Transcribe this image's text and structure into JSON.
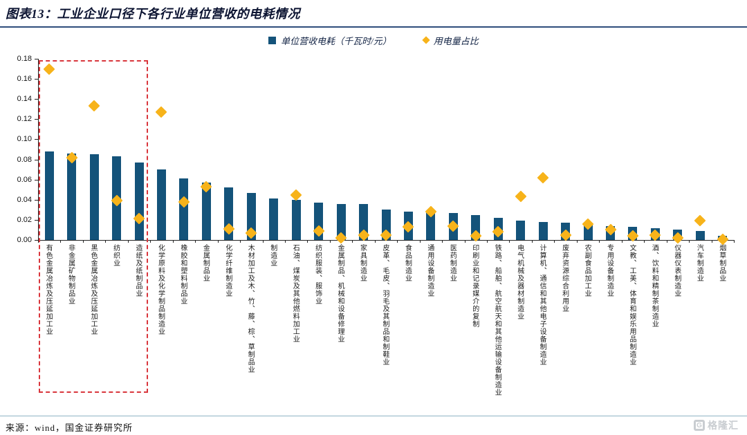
{
  "header": {
    "title": "图表13：工业企业口径下各行业单位营收的电耗情况"
  },
  "legend": {
    "bars_label": "单位营收电耗（千瓦时/元）",
    "diamond_label": "用电量占比"
  },
  "footer": {
    "source": "来源：wind，国金证券研究所",
    "logo_letter": "G",
    "logo_text": "格隆汇"
  },
  "colors": {
    "bar": "#14537a",
    "diamond": "#f7b31a",
    "highlight_box": "#d9363c",
    "accent_rule": "#2e4d7b"
  },
  "chart_data": {
    "type": "bar",
    "title": "图表13：工业企业口径下各行业单位营收的电耗情况",
    "ylim": [
      0,
      0.18
    ],
    "ytick_step": 0.02,
    "grid": false,
    "legend_position": "top-center",
    "categories": [
      "有色金属冶炼及压延加工业",
      "非金属矿物制品业",
      "黑色金属冶炼及压延加工业",
      "纺织业",
      "造纸及纸制品业",
      "化学原料及化学制品制造业",
      "橡胶和塑料制品业",
      "金属制品业",
      "化学纤维制造业",
      "木材加工及木、竹、藤、棕、草制品业",
      "制造业",
      "石油、煤炭及其他燃料加工业",
      "纺织服装、服饰业",
      "金属制品、机械和设备修理业",
      "家具制造业",
      "皮革、毛皮、羽毛及其制品和制鞋业",
      "食品制造业",
      "通用设备制造业",
      "医药制造业",
      "印刷业和记录媒介的复制",
      "铁路、船舶、航空航天和其他运输设备制造业",
      "电气机械及器材制造业",
      "计算机、通信和其他电子设备制造业",
      "废弃资源综合利用业",
      "农副食品加工业",
      "专用设备制造业",
      "文教、工美、体育和娱乐用品制造业",
      "酒、饮料和精制茶制造业",
      "仪器仪表制造业",
      "汽车制造业",
      "烟草制品业"
    ],
    "series": [
      {
        "name": "单位营收电耗（千瓦时/元）",
        "type": "bar",
        "values": [
          0.088,
          0.086,
          0.085,
          0.083,
          0.077,
          0.07,
          0.061,
          0.057,
          0.052,
          0.047,
          0.041,
          0.04,
          0.037,
          0.036,
          0.036,
          0.03,
          0.028,
          0.028,
          0.027,
          0.025,
          0.022,
          0.019,
          0.018,
          0.017,
          0.015,
          0.014,
          0.013,
          0.012,
          0.01,
          0.009,
          0.004
        ]
      },
      {
        "name": "用电量占比",
        "type": "scatter",
        "values": [
          0.17,
          0.082,
          0.133,
          0.039,
          0.021,
          0.127,
          0.038,
          0.053,
          0.011,
          0.007,
          null,
          0.045,
          0.009,
          0.002,
          0.005,
          0.005,
          0.013,
          0.028,
          0.014,
          0.004,
          0.008,
          0.043,
          0.062,
          0.005,
          0.016,
          0.01,
          0.004,
          0.005,
          0.002,
          0.019,
          0.001
        ]
      }
    ],
    "highlight_box_category_span": [
      "有色金属冶炼及压延加工业",
      "造纸及纸制品业"
    ]
  }
}
